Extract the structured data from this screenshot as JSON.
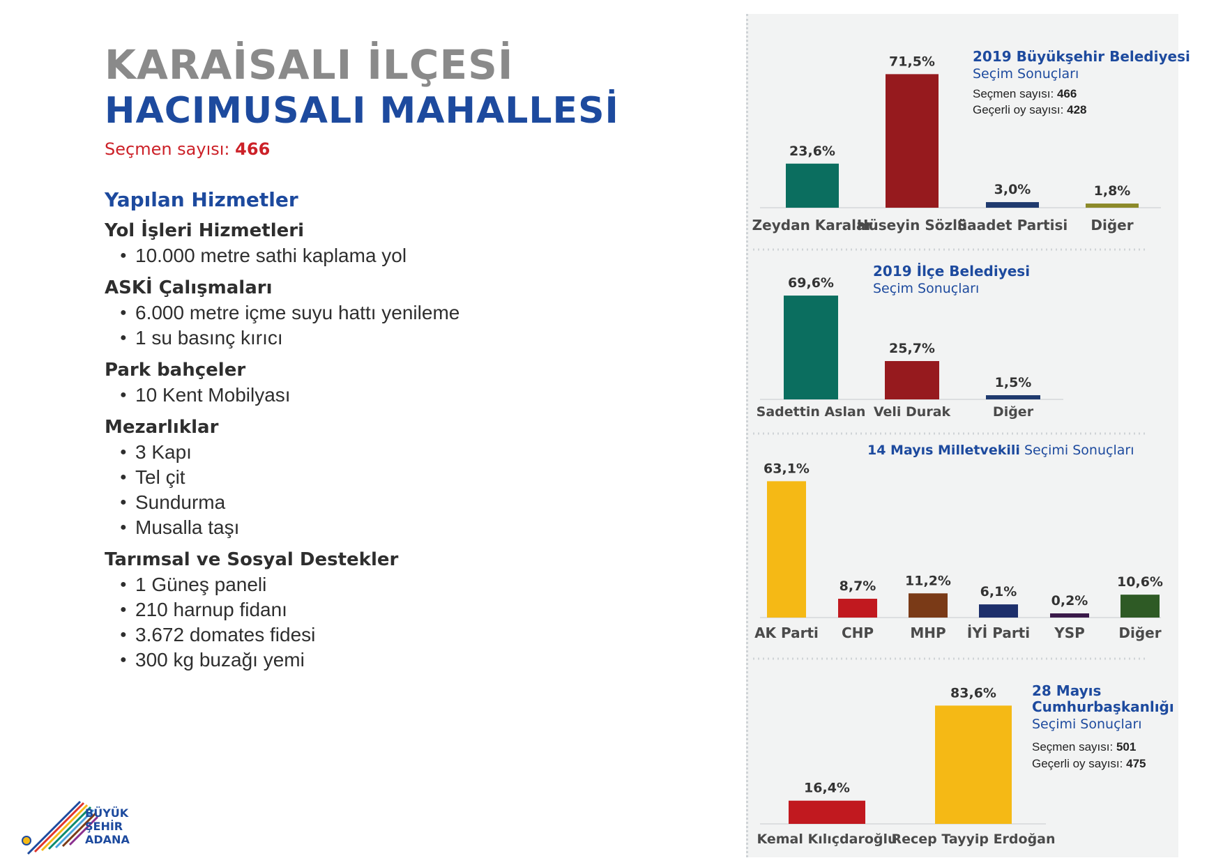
{
  "left": {
    "title_line1": "KARAİSALI İLÇESİ",
    "title_line2": "HACIMUSALI MAHALLESİ",
    "voters_label": "Seçmen sayısı:",
    "voters_value": "466",
    "services_title": "Yapılan Hizmetler",
    "sections": [
      {
        "title": "Yol İşleri Hizmetleri",
        "items": [
          "10.000 metre sathi kaplama yol"
        ]
      },
      {
        "title": "ASKİ Çalışmaları",
        "items": [
          "6.000 metre içme suyu hattı yenileme",
          "1 su basınç kırıcı"
        ]
      },
      {
        "title": "Park bahçeler",
        "items": [
          "10 Kent Mobilyası"
        ]
      },
      {
        "title": "Mezarlıklar",
        "items": [
          "3 Kapı",
          "Tel çit",
          "Sundurma",
          "Musalla taşı"
        ]
      },
      {
        "title": "Tarımsal ve Sosyal Destekler",
        "items": [
          "1 Güneş paneli",
          "210 harnup fidanı",
          "3.672 domates fidesi",
          "300 kg buzağı yemi"
        ]
      }
    ]
  },
  "logo": {
    "line1": "BÜYÜK",
    "line2": "ŞEHİR",
    "line3": "ADANA"
  },
  "chart_data": [
    {
      "type": "bar",
      "title": "2019 Büyükşehir Belediyesi",
      "subtitle": "Seçim Sonuçları",
      "info": [
        {
          "label": "Seçmen sayısı:",
          "value": "466"
        },
        {
          "label": "Geçerli oy sayısı:",
          "value": "428"
        }
      ],
      "categories": [
        "Zeydan Karalar",
        "Hüseyin Sözlü",
        "Saadet Partisi",
        "Diğer"
      ],
      "values": [
        23.6,
        71.5,
        3.0,
        1.8
      ],
      "labels": [
        "23,6%",
        "71,5%",
        "3,0%",
        "1,8%"
      ],
      "colors": [
        "#0b6e5f",
        "#961a1e",
        "#1f3a6e",
        "#8c8a2a"
      ]
    },
    {
      "type": "bar",
      "title": "2019 İlçe Belediyesi",
      "subtitle": "Seçim Sonuçları",
      "categories": [
        "Sadettin Aslan",
        "Veli Durak",
        "Diğer"
      ],
      "values": [
        69.6,
        25.7,
        1.5
      ],
      "labels": [
        "69,6%",
        "25,7%",
        "1,5%"
      ],
      "colors": [
        "#0b6e5f",
        "#961a1e",
        "#1f3a6e"
      ]
    },
    {
      "type": "bar",
      "title": "14 Mayıs Milletvekili",
      "subtitle": "Seçimi Sonuçları",
      "categories": [
        "AK Parti",
        "CHP",
        "MHP",
        "İYİ Parti",
        "YSP",
        "Diğer"
      ],
      "values": [
        63.1,
        8.7,
        11.2,
        6.1,
        0.2,
        10.6
      ],
      "labels": [
        "63,1%",
        "8,7%",
        "11,2%",
        "6,1%",
        "0,2%",
        "10,6%"
      ],
      "colors": [
        "#f5b915",
        "#c1191f",
        "#7a3a17",
        "#1d2f6b",
        "#3a1a4a",
        "#2e5a25"
      ]
    },
    {
      "type": "bar",
      "title": "28 Mayıs",
      "title2": "Cumhurbaşkanlığı",
      "subtitle": "Seçimi Sonuçları",
      "info": [
        {
          "label": "Seçmen sayısı:",
          "value": "501"
        },
        {
          "label": "Geçerli oy sayısı:",
          "value": "475"
        }
      ],
      "categories": [
        "Kemal Kılıçdaroğlu",
        "Recep Tayyip Erdoğan"
      ],
      "values": [
        16.4,
        83.6
      ],
      "labels": [
        "16,4%",
        "83,6%"
      ],
      "colors": [
        "#c1191f",
        "#f5b915"
      ]
    }
  ]
}
